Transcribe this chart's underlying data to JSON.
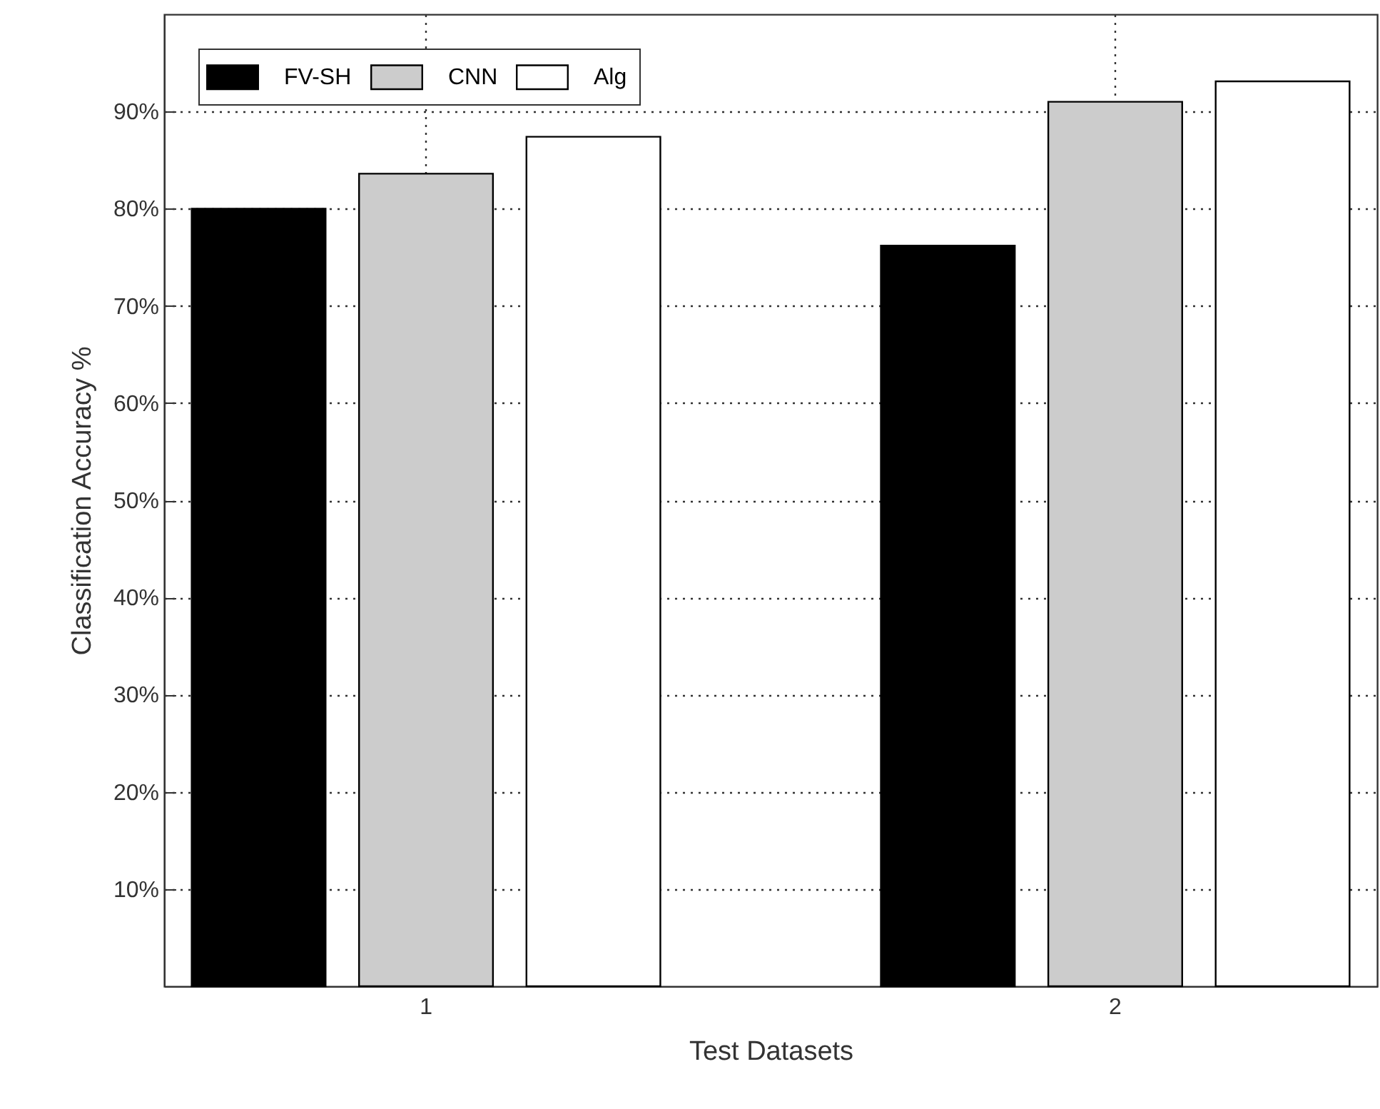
{
  "chart_data": {
    "type": "bar",
    "xlabel": "Test Datasets",
    "ylabel": "Classification Accuracy %",
    "categories": [
      "1",
      "2"
    ],
    "series": [
      {
        "name": "FV-SH",
        "color": "#000000",
        "values": [
          80.0,
          76.2
        ]
      },
      {
        "name": "CNN",
        "color": "#cccccc",
        "values": [
          83.6,
          91.0
        ]
      },
      {
        "name": "Alg",
        "color": "#ffffff",
        "values": [
          87.4,
          93.1
        ]
      }
    ],
    "ylim": [
      0,
      100
    ],
    "yticks": [
      {
        "value": 10,
        "label": "10%"
      },
      {
        "value": 20,
        "label": "20%"
      },
      {
        "value": 30,
        "label": "30%"
      },
      {
        "value": 40,
        "label": "40%"
      },
      {
        "value": 50,
        "label": "50%"
      },
      {
        "value": 60,
        "label": "60%"
      },
      {
        "value": 70,
        "label": "70%"
      },
      {
        "value": 80,
        "label": "80%"
      },
      {
        "value": 90,
        "label": "90%"
      }
    ],
    "grid": true,
    "legend": "top left"
  }
}
